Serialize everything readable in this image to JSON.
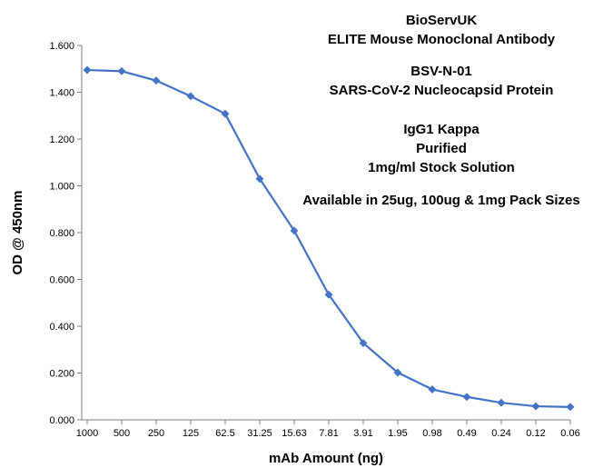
{
  "chart_data": {
    "type": "line",
    "title": "",
    "xlabel": "mAb Amount (ng)",
    "ylabel": "OD @ 450nm",
    "categories": [
      "1000",
      "500",
      "250",
      "125",
      "62.5",
      "31.25",
      "15.63",
      "7.81",
      "3.91",
      "1.95",
      "0.98",
      "0.49",
      "0.24",
      "0.12",
      "0.06"
    ],
    "series": [
      {
        "values": [
          1.495,
          1.49,
          1.45,
          1.383,
          1.308,
          1.03,
          0.808,
          0.535,
          0.328,
          0.202,
          0.13,
          0.098,
          0.073,
          0.058,
          0.055
        ]
      }
    ],
    "ylim": [
      0,
      1.6
    ],
    "yticks": [
      "0.000",
      "0.200",
      "0.400",
      "0.600",
      "0.800",
      "1.000",
      "1.200",
      "1.400",
      "1.600"
    ],
    "grid": false,
    "legend": "none",
    "line_color": "#4472C4",
    "annotations": [
      "BioServUK",
      "ELITE Mouse Monoclonal Antibody",
      "BSV-N-01",
      "SARS-CoV-2 Nucleocapsid Protein",
      "IgG1 Kappa",
      "Purified",
      "1mg/ml Stock Solution",
      "Available in 25ug, 100ug & 1mg Pack Sizes"
    ]
  }
}
